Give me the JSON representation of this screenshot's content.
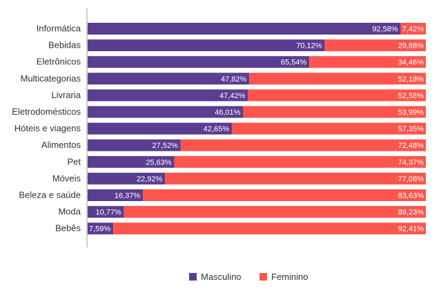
{
  "chart_data": {
    "type": "bar",
    "orientation": "horizontal",
    "stacked": true,
    "normalized_percent": true,
    "categories": [
      "Informática",
      "Bebidas",
      "Eletrônicos",
      "Multicategorias",
      "Livraria",
      "Eletrodomésticos",
      "Hóteis e viagens",
      "Alimentos",
      "Pet",
      "Móveis",
      "Beleza e saúde",
      "Moda",
      "Bebês"
    ],
    "series": [
      {
        "name": "Masculino",
        "color": "#5b3d91",
        "values": [
          92.58,
          70.12,
          65.54,
          47.82,
          47.42,
          46.01,
          42.65,
          27.52,
          25.63,
          22.92,
          16.37,
          10.77,
          7.59
        ],
        "labels": [
          "92,58%",
          "70,12%",
          "65,54%",
          "47,82%",
          "47,42%",
          "46,01%",
          "42,65%",
          "27,52%",
          "25,63%",
          "22,92%",
          "16,37%",
          "10,77%",
          "7,59%"
        ]
      },
      {
        "name": "Feminino",
        "color": "#fd554e",
        "values": [
          7.42,
          29.88,
          34.46,
          52.18,
          52.58,
          53.99,
          57.35,
          72.48,
          74.37,
          77.08,
          83.63,
          89.23,
          92.41
        ],
        "labels": [
          "7,42%",
          "29,88%",
          "34,46%",
          "52,18%",
          "52,58%",
          "53,99%",
          "57,35%",
          "72,48%",
          "74,37%",
          "77,08%",
          "83,63%",
          "89,23%",
          "92,41%"
        ]
      }
    ],
    "xlim": [
      0,
      100
    ],
    "grid": false,
    "legend_position": "bottom-center",
    "title": "",
    "xlabel": "",
    "ylabel": ""
  }
}
